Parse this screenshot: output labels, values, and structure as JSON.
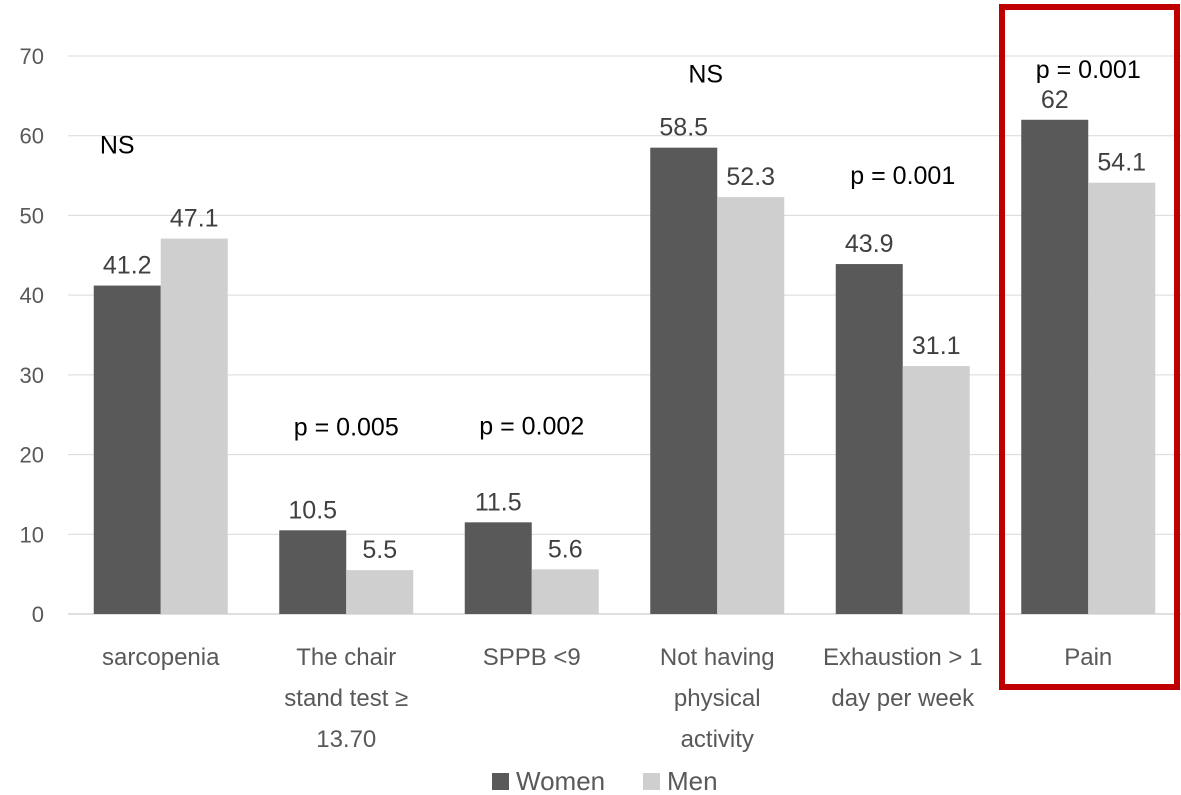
{
  "chart_data": {
    "type": "bar",
    "categories": [
      [
        "sarcopenia"
      ],
      [
        "The chair",
        "stand test ≥",
        "13.70"
      ],
      [
        "SPPB <9"
      ],
      [
        "Not having",
        "physical",
        "activity"
      ],
      [
        "Exhaustion > 1",
        "day per week"
      ],
      [
        "Pain"
      ]
    ],
    "series": [
      {
        "name": "Women",
        "values": [
          41.2,
          10.5,
          11.5,
          58.5,
          43.9,
          62
        ],
        "labels": [
          "41.2",
          "10.5",
          "11.5",
          "58.5",
          "43.9",
          "62"
        ],
        "color": "#595959"
      },
      {
        "name": "Men",
        "values": [
          47.1,
          5.5,
          5.6,
          52.3,
          31.1,
          54.1
        ],
        "labels": [
          "47.1",
          "5.5",
          "5.6",
          "52.3",
          "31.1",
          "54.1"
        ],
        "color": "#cfcfcf"
      }
    ],
    "annotations": [
      "NS",
      "p = 0.005",
      "p = 0.002",
      "NS",
      "p = 0.001",
      "p = 0.001"
    ],
    "ylim": [
      0,
      70
    ],
    "yticks": [
      0,
      10,
      20,
      30,
      40,
      50,
      60,
      70
    ],
    "grid": true,
    "legend_position": "bottom",
    "highlight_category": "Pain",
    "highlight_color": "#c00000"
  }
}
